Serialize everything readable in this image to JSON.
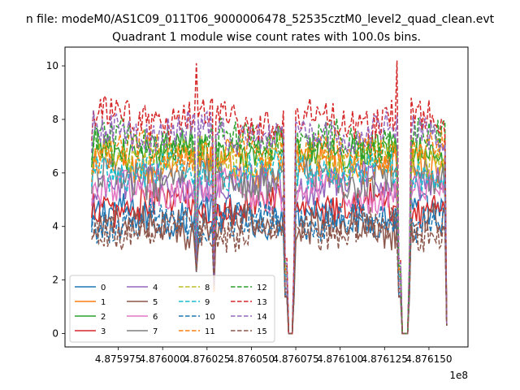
{
  "chart_data": {
    "type": "line",
    "suptitle": "n file: modeM0/AS1C09_011T06_9000006478_52535cztM0_level2_quad_clean.evt",
    "title": "Quadrant 1 module wise count rates with 100.0s bins.",
    "xlabel": "",
    "ylabel": "",
    "x_offset_label": "1e8",
    "xlim": [
      4.875945,
      4.876172
    ],
    "ylim": [
      -0.5,
      10.7
    ],
    "x_ticks": [
      4.875975,
      4.876,
      4.876025,
      4.87605,
      4.876075,
      4.8761,
      4.876125,
      4.87615
    ],
    "x_tick_labels": [
      "4.875975",
      "4.876000",
      "4.876025",
      "4.876050",
      "4.876075",
      "4.876100",
      "4.876125",
      "4.876150"
    ],
    "y_ticks": [
      0,
      2,
      4,
      6,
      8,
      10
    ],
    "y_tick_labels": [
      "0",
      "2",
      "4",
      "6",
      "8",
      "10"
    ],
    "x_range": [
      4.87596,
      4.87616
    ],
    "n_bins": 200,
    "gaps": [
      {
        "start": 4.87607,
        "end": 4.876073
      },
      {
        "start": 4.876134,
        "end": 4.876138
      }
    ],
    "dips": [
      {
        "x": 4.876019,
        "value": 2.5
      },
      {
        "x": 4.876029,
        "value": 1.8
      }
    ],
    "spikes": [
      {
        "x": 4.876019,
        "series": "13",
        "value": 10.1
      },
      {
        "x": 4.876132,
        "series": "13",
        "value": 10.2
      }
    ],
    "legend_location": "lower-left",
    "legend_columns": 4,
    "series": [
      {
        "name": "0",
        "mean": 4.4,
        "color": "#1f77b4",
        "dash": "solid"
      },
      {
        "name": "1",
        "mean": 6.3,
        "color": "#ff7f0e",
        "dash": "solid"
      },
      {
        "name": "2",
        "mean": 6.9,
        "color": "#2ca02c",
        "dash": "solid"
      },
      {
        "name": "3",
        "mean": 4.8,
        "color": "#d62728",
        "dash": "solid"
      },
      {
        "name": "4",
        "mean": 5.6,
        "color": "#9467bd",
        "dash": "solid"
      },
      {
        "name": "5",
        "mean": 4.0,
        "color": "#8c564b",
        "dash": "solid"
      },
      {
        "name": "6",
        "mean": 5.3,
        "color": "#e377c2",
        "dash": "solid"
      },
      {
        "name": "7",
        "mean": 5.8,
        "color": "#7f7f7f",
        "dash": "solid"
      },
      {
        "name": "8",
        "mean": 6.6,
        "color": "#bcbd22",
        "dash": "dashed"
      },
      {
        "name": "9",
        "mean": 6.1,
        "color": "#17becf",
        "dash": "dashed"
      },
      {
        "name": "10",
        "mean": 4.2,
        "color": "#1f77b4",
        "dash": "dashed"
      },
      {
        "name": "11",
        "mean": 6.8,
        "color": "#ff7f0e",
        "dash": "dashed"
      },
      {
        "name": "12",
        "mean": 7.2,
        "color": "#2ca02c",
        "dash": "dashed"
      },
      {
        "name": "13",
        "mean": 8.0,
        "color": "#d62728",
        "dash": "dashed"
      },
      {
        "name": "14",
        "mean": 7.5,
        "color": "#9467bd",
        "dash": "dashed"
      },
      {
        "name": "15",
        "mean": 3.9,
        "color": "#8c564b",
        "dash": "dashed"
      }
    ]
  }
}
